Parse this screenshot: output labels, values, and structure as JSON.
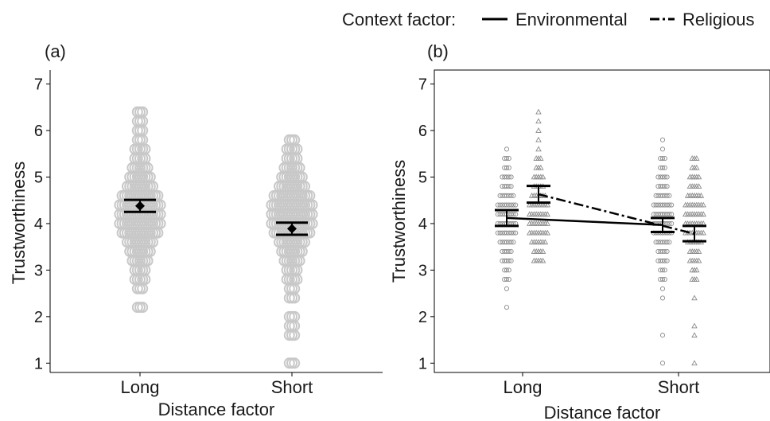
{
  "legend": {
    "title": "Context factor:",
    "items": [
      {
        "label": "Environmental",
        "line": "solid"
      },
      {
        "label": "Religious",
        "line": "dashdot"
      }
    ],
    "placement": "top-right"
  },
  "chart_data": [
    {
      "panel_label": "(a)",
      "type": "scatter",
      "xlabel": "Distance factor",
      "ylabel": "Trustworthiness",
      "categories": [
        "Long",
        "Short"
      ],
      "ylim": [
        0.8,
        7.3
      ],
      "yticks": [
        1,
        2,
        3,
        4,
        5,
        6,
        7
      ],
      "grid": false,
      "marker_color": "#c8c8c8",
      "points": {
        "Long": [
          2.2,
          2.6,
          2.8,
          3.0,
          3.2,
          3.4,
          3.6,
          3.8,
          4.0,
          4.2,
          4.4,
          4.6,
          4.8,
          5.0,
          5.2,
          5.4,
          5.6,
          5.8,
          6.0,
          6.2,
          6.4
        ],
        "Short": [
          1.0,
          1.6,
          1.8,
          2.0,
          2.4,
          2.6,
          2.8,
          3.0,
          3.2,
          3.4,
          3.6,
          3.8,
          4.0,
          4.2,
          4.4,
          4.6,
          4.8,
          5.0,
          5.2,
          5.4,
          5.6,
          5.8
        ]
      },
      "means": [
        {
          "category": "Long",
          "mean": 4.38,
          "ci_low": 4.25,
          "ci_high": 4.51
        },
        {
          "category": "Short",
          "mean": 3.89,
          "ci_low": 3.76,
          "ci_high": 4.02
        }
      ]
    },
    {
      "panel_label": "(b)",
      "type": "scatter",
      "xlabel": "Distance factor",
      "ylabel": "Trustworthiness",
      "categories": [
        "Long",
        "Short"
      ],
      "ylim": [
        0.8,
        7.3
      ],
      "yticks": [
        1,
        2,
        3,
        4,
        5,
        6,
        7
      ],
      "grid": false,
      "series": [
        {
          "name": "Environmental",
          "marker": "circle",
          "line": "solid",
          "points": {
            "Long": [
              2.2,
              2.6,
              2.8,
              3.0,
              3.2,
              3.4,
              3.6,
              3.8,
              4.0,
              4.2,
              4.4,
              4.6,
              4.8,
              5.0,
              5.2,
              5.4,
              5.6
            ],
            "Short": [
              1.0,
              1.6,
              2.4,
              2.6,
              2.8,
              3.0,
              3.2,
              3.4,
              3.6,
              3.8,
              4.0,
              4.2,
              4.4,
              4.6,
              4.8,
              5.0,
              5.2,
              5.4,
              5.6,
              5.8
            ]
          },
          "means": [
            {
              "category": "Long",
              "mean": 4.12,
              "ci_low": 3.95,
              "ci_high": 4.29
            },
            {
              "category": "Short",
              "mean": 3.97,
              "ci_low": 3.82,
              "ci_high": 4.12
            }
          ]
        },
        {
          "name": "Religious",
          "marker": "triangle",
          "line": "dashdot",
          "points": {
            "Long": [
              3.2,
              3.4,
              3.6,
              3.8,
              4.0,
              4.2,
              4.4,
              4.6,
              4.8,
              5.0,
              5.2,
              5.4,
              5.6,
              5.8,
              6.0,
              6.2,
              6.4
            ],
            "Short": [
              1.0,
              1.6,
              1.8,
              2.4,
              2.8,
              3.0,
              3.2,
              3.4,
              3.6,
              3.8,
              4.0,
              4.2,
              4.4,
              4.6,
              4.8,
              5.0,
              5.2,
              5.4
            ]
          },
          "means": [
            {
              "category": "Long",
              "mean": 4.63,
              "ci_low": 4.45,
              "ci_high": 4.81
            },
            {
              "category": "Short",
              "mean": 3.78,
              "ci_low": 3.62,
              "ci_high": 3.95
            }
          ]
        }
      ]
    }
  ]
}
